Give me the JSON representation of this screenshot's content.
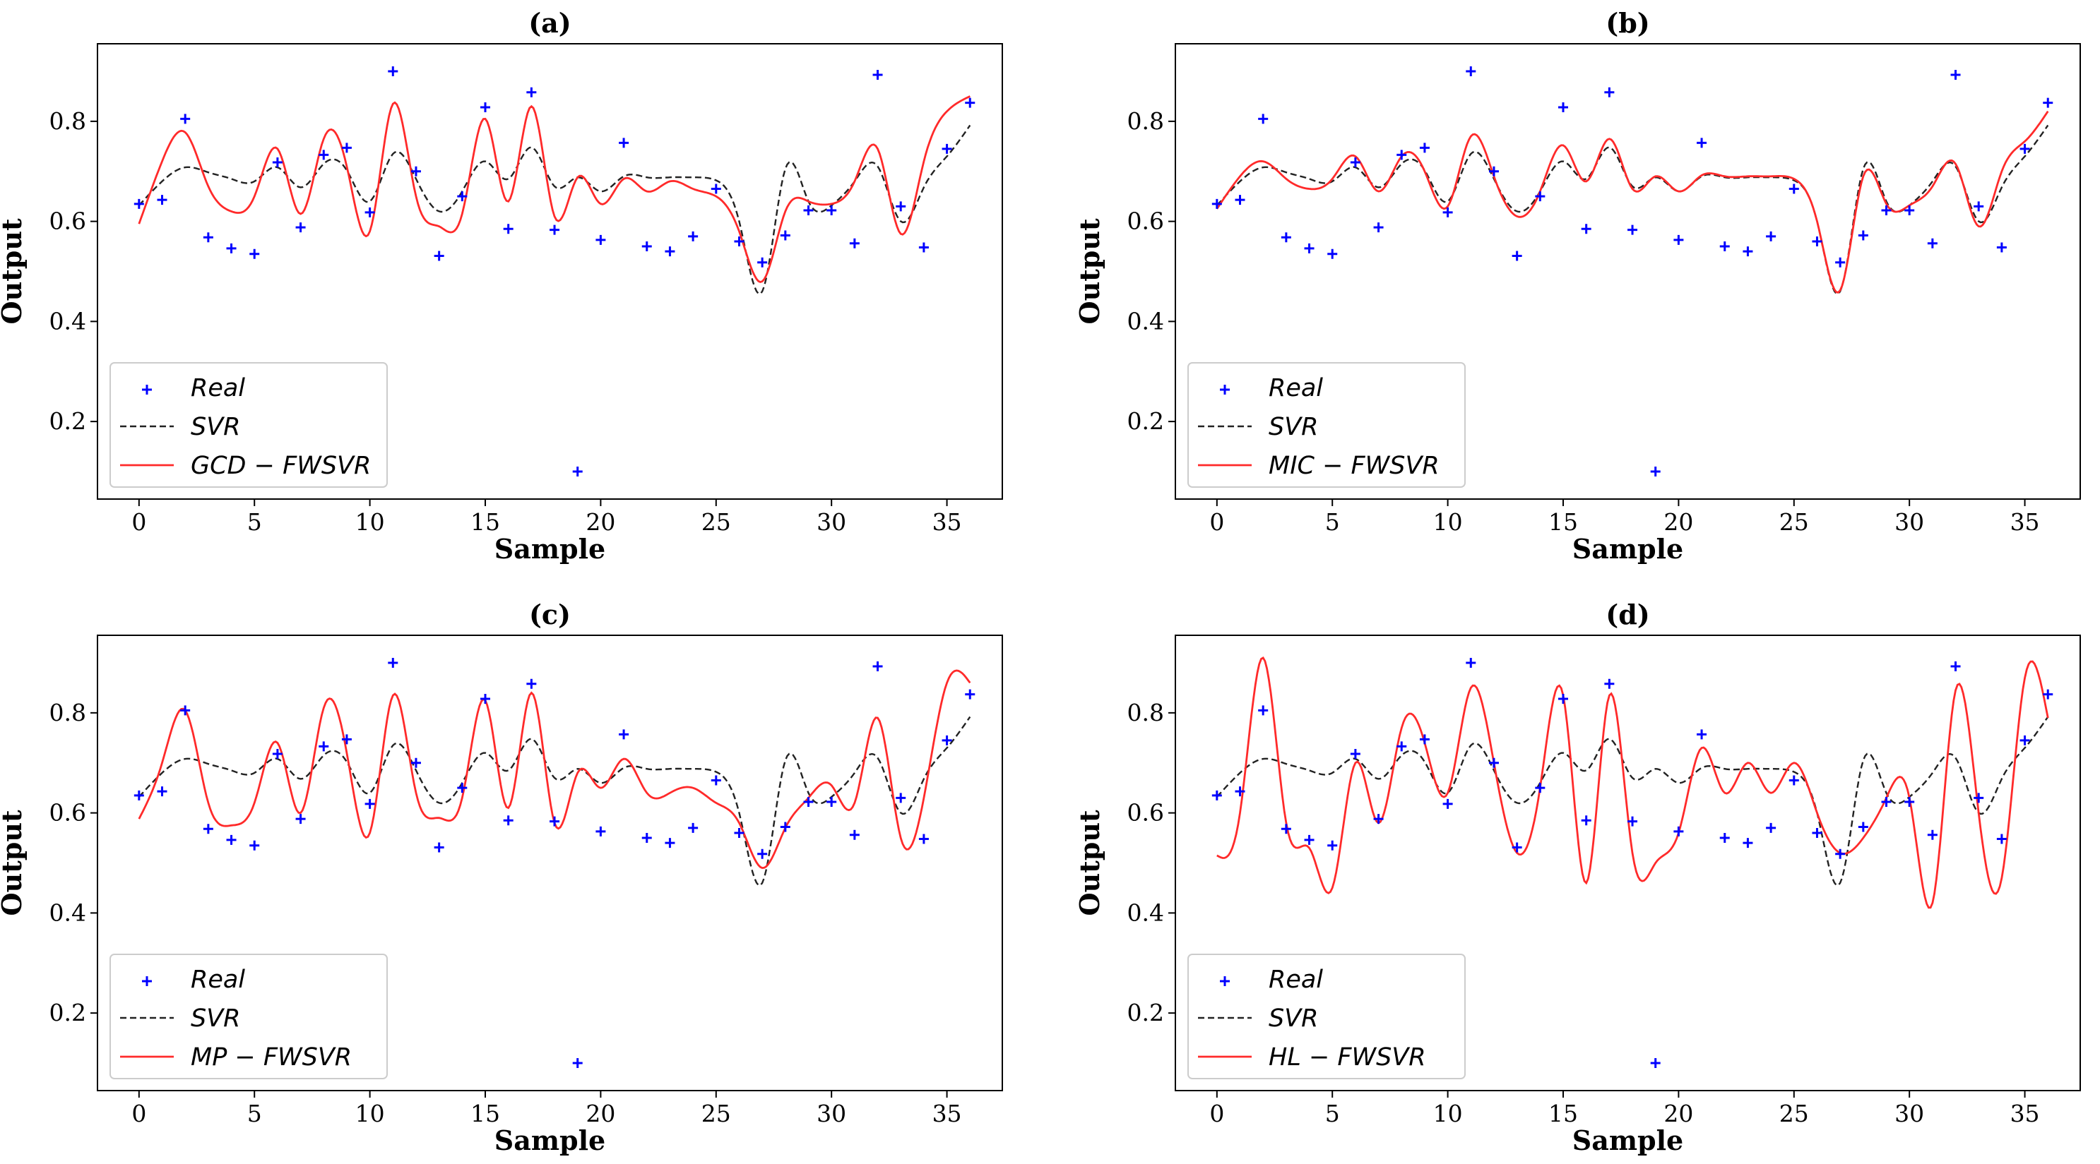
{
  "figure": {
    "colors": {
      "real": "#0000ff",
      "svr": "#222222",
      "fwsvr": "#ff2a2a",
      "axes": "#000000",
      "background": "#ffffff"
    }
  },
  "chart_data": [
    {
      "id": "a",
      "type": "line",
      "title": "(a)",
      "xlabel": "Sample",
      "ylabel": "Output",
      "xlim": [
        -1.8,
        37.4
      ],
      "ylim": [
        0.045,
        0.955
      ],
      "xticks": [
        0,
        5,
        10,
        15,
        20,
        25,
        30,
        35
      ],
      "yticks": [
        0.2,
        0.4,
        0.6,
        0.8
      ],
      "legend": {
        "position": "lower-left",
        "entries": [
          "Real",
          "SVR",
          "GCD − FWSVR"
        ]
      },
      "real": [
        0.635,
        0.643,
        0.805,
        0.568,
        0.546,
        0.535,
        0.718,
        0.588,
        0.733,
        0.747,
        0.618,
        0.9,
        0.7,
        0.531,
        0.65,
        0.828,
        0.585,
        0.858,
        0.583,
        0.1,
        0.563,
        0.757,
        0.55,
        0.54,
        0.57,
        0.665,
        0.56,
        0.518,
        0.572,
        0.622,
        0.622,
        0.556,
        0.893,
        0.63,
        0.548,
        0.745,
        0.837
      ],
      "svr": [
        0.632,
        0.68,
        0.708,
        0.698,
        0.685,
        0.68,
        0.708,
        0.668,
        0.715,
        0.702,
        0.64,
        0.735,
        0.685,
        0.62,
        0.66,
        0.72,
        0.685,
        0.748,
        0.67,
        0.688,
        0.66,
        0.69,
        0.688,
        0.688,
        0.688,
        0.682,
        0.6,
        0.46,
        0.705,
        0.64,
        0.632,
        0.68,
        0.71,
        0.6,
        0.668,
        0.73,
        0.792
      ],
      "fwsvr": [
        0.595,
        0.72,
        0.778,
        0.67,
        0.62,
        0.65,
        0.745,
        0.615,
        0.765,
        0.71,
        0.58,
        0.835,
        0.65,
        0.59,
        0.615,
        0.805,
        0.64,
        0.83,
        0.61,
        0.688,
        0.635,
        0.685,
        0.66,
        0.68,
        0.665,
        0.65,
        0.58,
        0.48,
        0.62,
        0.64,
        0.635,
        0.68,
        0.745,
        0.575,
        0.72,
        0.82,
        0.85
      ]
    },
    {
      "id": "b",
      "type": "line",
      "title": "(b)",
      "xlabel": "Sample",
      "ylabel": "Output",
      "xlim": [
        -1.8,
        37.4
      ],
      "ylim": [
        0.045,
        0.955
      ],
      "xticks": [
        0,
        5,
        10,
        15,
        20,
        25,
        30,
        35
      ],
      "yticks": [
        0.2,
        0.4,
        0.6,
        0.8
      ],
      "legend": {
        "position": "lower-left",
        "entries": [
          "Real",
          "SVR",
          "MIC − FWSVR"
        ]
      },
      "real": [
        0.635,
        0.643,
        0.805,
        0.568,
        0.546,
        0.535,
        0.718,
        0.588,
        0.733,
        0.747,
        0.618,
        0.9,
        0.7,
        0.531,
        0.65,
        0.828,
        0.585,
        0.858,
        0.583,
        0.1,
        0.563,
        0.757,
        0.55,
        0.54,
        0.57,
        0.665,
        0.56,
        0.518,
        0.572,
        0.622,
        0.622,
        0.556,
        0.893,
        0.63,
        0.548,
        0.745,
        0.837
      ],
      "svr": [
        0.632,
        0.68,
        0.708,
        0.698,
        0.685,
        0.68,
        0.708,
        0.668,
        0.715,
        0.702,
        0.64,
        0.735,
        0.685,
        0.62,
        0.66,
        0.72,
        0.685,
        0.748,
        0.67,
        0.688,
        0.66,
        0.69,
        0.688,
        0.688,
        0.688,
        0.682,
        0.6,
        0.46,
        0.705,
        0.64,
        0.632,
        0.68,
        0.71,
        0.6,
        0.668,
        0.73,
        0.792
      ],
      "fwsvr": [
        0.625,
        0.69,
        0.72,
        0.685,
        0.665,
        0.685,
        0.73,
        0.66,
        0.73,
        0.7,
        0.63,
        0.77,
        0.69,
        0.61,
        0.66,
        0.752,
        0.68,
        0.765,
        0.665,
        0.69,
        0.66,
        0.692,
        0.69,
        0.69,
        0.69,
        0.685,
        0.6,
        0.462,
        0.69,
        0.635,
        0.632,
        0.67,
        0.715,
        0.59,
        0.7,
        0.76,
        0.82
      ]
    },
    {
      "id": "c",
      "type": "line",
      "title": "(c)",
      "xlabel": "Sample",
      "ylabel": "Output",
      "xlim": [
        -1.8,
        37.4
      ],
      "ylim": [
        0.045,
        0.955
      ],
      "xticks": [
        0,
        5,
        10,
        15,
        20,
        25,
        30,
        35
      ],
      "yticks": [
        0.2,
        0.4,
        0.6,
        0.8
      ],
      "legend": {
        "position": "lower-left",
        "entries": [
          "Real",
          "SVR",
          "MP − FWSVR"
        ]
      },
      "real": [
        0.635,
        0.643,
        0.805,
        0.568,
        0.546,
        0.535,
        0.718,
        0.588,
        0.733,
        0.747,
        0.618,
        0.9,
        0.7,
        0.531,
        0.65,
        0.828,
        0.585,
        0.858,
        0.583,
        0.1,
        0.563,
        0.757,
        0.55,
        0.54,
        0.57,
        0.665,
        0.56,
        0.518,
        0.572,
        0.622,
        0.622,
        0.556,
        0.893,
        0.63,
        0.548,
        0.745,
        0.837
      ],
      "svr": [
        0.632,
        0.68,
        0.708,
        0.698,
        0.685,
        0.68,
        0.708,
        0.668,
        0.715,
        0.702,
        0.64,
        0.735,
        0.685,
        0.62,
        0.66,
        0.72,
        0.685,
        0.748,
        0.67,
        0.688,
        0.66,
        0.69,
        0.688,
        0.688,
        0.688,
        0.682,
        0.6,
        0.46,
        0.705,
        0.64,
        0.632,
        0.68,
        0.71,
        0.6,
        0.668,
        0.73,
        0.792
      ],
      "fwsvr": [
        0.588,
        0.7,
        0.805,
        0.62,
        0.575,
        0.62,
        0.74,
        0.6,
        0.81,
        0.72,
        0.56,
        0.835,
        0.64,
        0.59,
        0.63,
        0.825,
        0.61,
        0.84,
        0.58,
        0.68,
        0.65,
        0.708,
        0.64,
        0.64,
        0.65,
        0.62,
        0.58,
        0.49,
        0.57,
        0.63,
        0.655,
        0.62,
        0.79,
        0.55,
        0.63,
        0.86,
        0.86
      ]
    },
    {
      "id": "d",
      "type": "line",
      "title": "(d)",
      "xlabel": "Sample",
      "ylabel": "Output",
      "xlim": [
        -1.8,
        37.4
      ],
      "ylim": [
        0.045,
        0.955
      ],
      "xticks": [
        0,
        5,
        10,
        15,
        20,
        25,
        30,
        35
      ],
      "yticks": [
        0.2,
        0.4,
        0.6,
        0.8
      ],
      "legend": {
        "position": "lower-left",
        "entries": [
          "Real",
          "SVR",
          "HL − FWSVR"
        ]
      },
      "real": [
        0.635,
        0.643,
        0.805,
        0.568,
        0.546,
        0.535,
        0.718,
        0.588,
        0.733,
        0.747,
        0.618,
        0.9,
        0.7,
        0.531,
        0.65,
        0.828,
        0.585,
        0.858,
        0.583,
        0.1,
        0.563,
        0.757,
        0.55,
        0.54,
        0.57,
        0.665,
        0.56,
        0.518,
        0.572,
        0.622,
        0.622,
        0.556,
        0.893,
        0.63,
        0.548,
        0.745,
        0.837
      ],
      "svr": [
        0.632,
        0.68,
        0.708,
        0.698,
        0.685,
        0.68,
        0.708,
        0.668,
        0.715,
        0.702,
        0.64,
        0.735,
        0.685,
        0.62,
        0.66,
        0.72,
        0.685,
        0.748,
        0.67,
        0.688,
        0.66,
        0.69,
        0.688,
        0.688,
        0.688,
        0.682,
        0.6,
        0.46,
        0.705,
        0.64,
        0.632,
        0.68,
        0.71,
        0.6,
        0.668,
        0.73,
        0.792
      ],
      "fwsvr": [
        0.515,
        0.6,
        0.91,
        0.58,
        0.53,
        0.45,
        0.7,
        0.58,
        0.77,
        0.74,
        0.64,
        0.85,
        0.7,
        0.52,
        0.65,
        0.835,
        0.46,
        0.835,
        0.52,
        0.5,
        0.56,
        0.73,
        0.64,
        0.7,
        0.64,
        0.7,
        0.6,
        0.52,
        0.55,
        0.63,
        0.63,
        0.42,
        0.845,
        0.6,
        0.47,
        0.87,
        0.79
      ]
    }
  ]
}
